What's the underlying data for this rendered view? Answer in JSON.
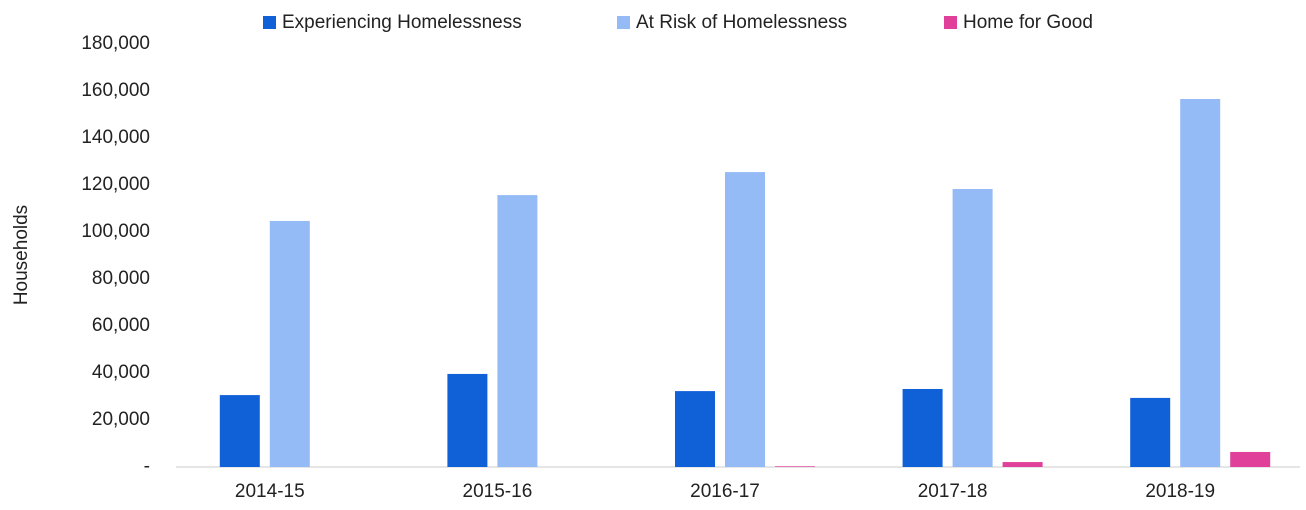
{
  "chart_data": {
    "type": "bar",
    "categories": [
      "2014-15",
      "2015-16",
      "2016-17",
      "2017-18",
      "2018-19"
    ],
    "series": [
      {
        "name": "Experiencing Homelessness",
        "color": "#1060d8",
        "values": [
          30600,
          39600,
          32300,
          33200,
          29400
        ]
      },
      {
        "name": "At Risk of Homelessness",
        "color": "#94bbf5",
        "values": [
          104700,
          115700,
          125500,
          118300,
          156600
        ]
      },
      {
        "name": "Home for Good",
        "color": "#e0409a",
        "values": [
          0,
          0,
          300,
          2100,
          6400
        ]
      }
    ],
    "y_label": "Households",
    "ylim": [
      0,
      180000
    ],
    "yticks": [
      {
        "value": 0,
        "label": "-"
      },
      {
        "value": 20000,
        "label": "20,000"
      },
      {
        "value": 40000,
        "label": "40,000"
      },
      {
        "value": 60000,
        "label": "60,000"
      },
      {
        "value": 80000,
        "label": "80,000"
      },
      {
        "value": 100000,
        "label": "100,000"
      },
      {
        "value": 120000,
        "label": "120,000"
      },
      {
        "value": 140000,
        "label": "140,000"
      },
      {
        "value": 160000,
        "label": "160,000"
      },
      {
        "value": 180000,
        "label": "180,000"
      }
    ],
    "grid": false,
    "legend": "top"
  }
}
